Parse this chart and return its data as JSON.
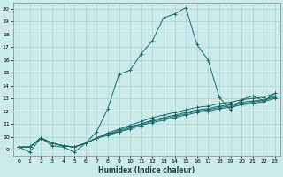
{
  "xlabel": "Humidex (Indice chaleur)",
  "ylabel": "",
  "xlim": [
    -0.5,
    23.5
  ],
  "ylim": [
    8.5,
    20.5
  ],
  "yticks": [
    9,
    10,
    11,
    12,
    13,
    14,
    15,
    16,
    17,
    18,
    19,
    20
  ],
  "xticks": [
    0,
    1,
    2,
    3,
    4,
    5,
    6,
    7,
    8,
    9,
    10,
    11,
    12,
    13,
    14,
    15,
    16,
    17,
    18,
    19,
    20,
    21,
    22,
    23
  ],
  "background_color": "#cceaea",
  "grid_color": "#aad4d4",
  "line_color": "#1a6b6b",
  "series": [
    [
      9.2,
      8.8,
      9.9,
      9.3,
      9.2,
      8.8,
      9.5,
      10.4,
      12.2,
      14.9,
      15.2,
      16.5,
      17.5,
      19.3,
      19.6,
      20.1,
      17.2,
      16.0,
      13.1,
      12.1,
      12.9,
      13.2,
      12.8,
      13.4
    ],
    [
      9.2,
      9.2,
      9.9,
      9.5,
      9.3,
      9.2,
      9.5,
      9.9,
      10.3,
      10.6,
      10.9,
      11.2,
      11.5,
      11.7,
      11.9,
      12.1,
      12.3,
      12.4,
      12.6,
      12.7,
      12.9,
      13.0,
      13.1,
      13.4
    ],
    [
      9.2,
      9.2,
      9.9,
      9.5,
      9.3,
      9.2,
      9.5,
      9.9,
      10.2,
      10.5,
      10.8,
      11.0,
      11.3,
      11.5,
      11.7,
      11.9,
      12.1,
      12.2,
      12.4,
      12.5,
      12.7,
      12.8,
      12.9,
      13.2
    ],
    [
      9.2,
      9.2,
      9.9,
      9.5,
      9.3,
      9.2,
      9.5,
      9.9,
      10.2,
      10.4,
      10.7,
      11.0,
      11.2,
      11.4,
      11.6,
      11.8,
      12.0,
      12.1,
      12.3,
      12.4,
      12.6,
      12.7,
      12.85,
      13.1
    ],
    [
      9.2,
      9.2,
      9.9,
      9.5,
      9.3,
      9.2,
      9.5,
      9.9,
      10.1,
      10.4,
      10.6,
      10.9,
      11.1,
      11.3,
      11.5,
      11.7,
      11.9,
      12.0,
      12.2,
      12.3,
      12.5,
      12.6,
      12.75,
      13.0
    ]
  ]
}
